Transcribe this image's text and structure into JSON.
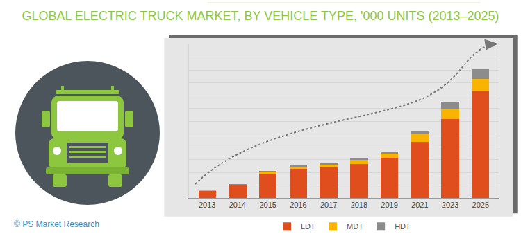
{
  "chart_data": {
    "type": "bar",
    "title": "GLOBAL ELECTRIC TRUCK MARKET, BY VEHICLE TYPE, '000 UNITS (2013–2025)",
    "source": "© PS Market Research",
    "categories": [
      "2013",
      "2014",
      "2015",
      "2016",
      "2017",
      "2018",
      "2019",
      "2021",
      "2023",
      "2025"
    ],
    "series": [
      {
        "name": "LDT",
        "color": "#e04e1e",
        "values": [
          11,
          19,
          38,
          45,
          48,
          53,
          63,
          88,
          123,
          166
        ]
      },
      {
        "name": "MDT",
        "color": "#f8b400",
        "values": [
          1,
          2,
          3,
          4,
          4,
          7,
          6,
          11,
          17,
          20
        ]
      },
      {
        "name": "HDT",
        "color": "#8c8c8c",
        "values": [
          0.5,
          1,
          1,
          2,
          2,
          3,
          3,
          6,
          10,
          15
        ]
      }
    ],
    "stacked": true,
    "ylim": [
      0,
      240
    ],
    "yticks": [
      0,
      20,
      40,
      60,
      80,
      100,
      120,
      140,
      160,
      180,
      200,
      220,
      240
    ],
    "grid": true,
    "legend": "bottom",
    "tick_labels": "x"
  }
}
